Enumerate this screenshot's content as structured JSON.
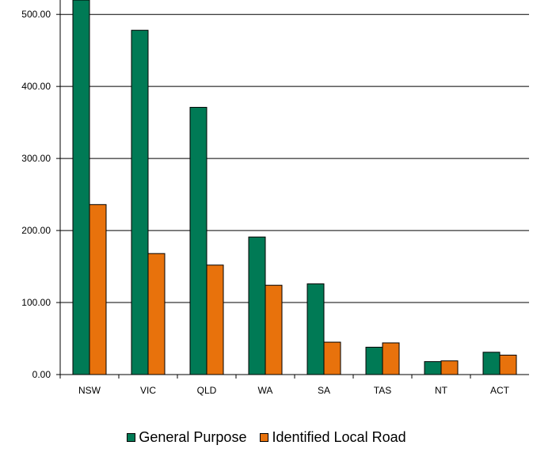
{
  "chart_data": {
    "type": "bar",
    "title": "",
    "xlabel": "",
    "ylabel": "",
    "categories": [
      "NSW",
      "VIC",
      "QLD",
      "WA",
      "SA",
      "TAS",
      "NT",
      "ACT"
    ],
    "series": [
      {
        "name": "General Purpose",
        "color": "#007A55",
        "values": [
          520,
          478,
          371,
          191,
          126,
          38,
          18,
          31
        ]
      },
      {
        "name": "Identified Local Road",
        "color": "#E8720C",
        "values": [
          236,
          168,
          152,
          124,
          45,
          44,
          19,
          27
        ]
      }
    ],
    "ylim": [
      0,
      520
    ],
    "yticks": [
      "0.00",
      "100.00",
      "200.00",
      "300.00",
      "400.00",
      "500.00"
    ],
    "ytick_values": [
      0,
      100,
      200,
      300,
      400,
      500
    ],
    "grid": true,
    "legend_position": "bottom"
  }
}
